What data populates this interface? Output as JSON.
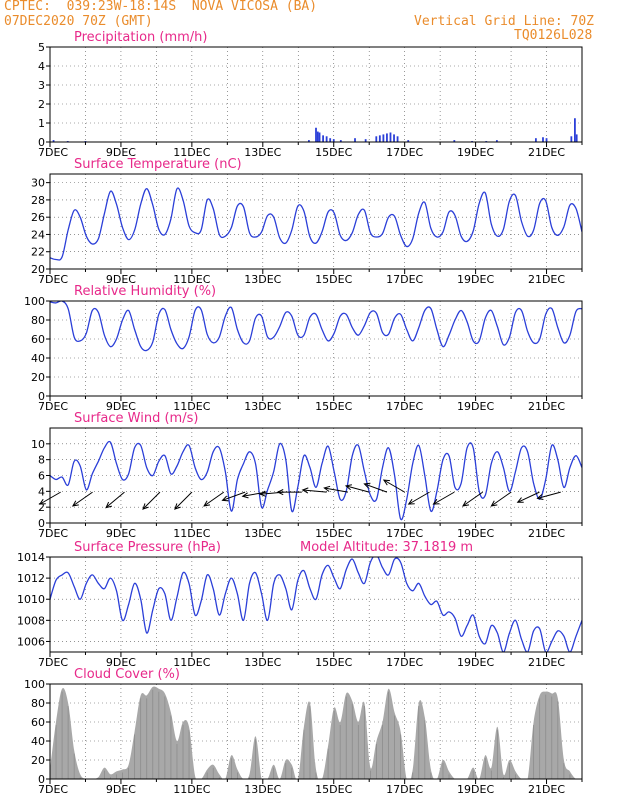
{
  "header": {
    "source": "CPTEC:",
    "coords": "039:23W-18:14S",
    "location": "NOVA VICOSA (BA)",
    "run": "07DEC2020 70Z (GMT)",
    "grid_note": "Vertical Grid Line: 70Z",
    "code": "TQ0126L028"
  },
  "colors": {
    "line": "#2b3fd8",
    "title": "#e7298a",
    "header": "#ea8c2c",
    "cloud": "#a8a8a8",
    "arrow": "#000000"
  },
  "x_labels": [
    "7DEC",
    "9DEC",
    "11DEC",
    "13DEC",
    "15DEC",
    "17DEC",
    "19DEC",
    "21DEC"
  ],
  "chart_data": [
    {
      "type": "bar",
      "title": "Precipitation (mm/h)",
      "ylim": [
        0,
        5
      ],
      "yticks": [
        0,
        1,
        2,
        3,
        4,
        5
      ],
      "x_unit": "days since 7DEC 70Z",
      "bars": [
        [
          0.1,
          0.1
        ],
        [
          0.5,
          0.05
        ],
        [
          1.0,
          0.05
        ],
        [
          7.3,
          0.1
        ],
        [
          7.5,
          0.75
        ],
        [
          7.55,
          0.55
        ],
        [
          7.6,
          0.5
        ],
        [
          7.7,
          0.35
        ],
        [
          7.8,
          0.3
        ],
        [
          7.9,
          0.2
        ],
        [
          8.0,
          0.15
        ],
        [
          8.2,
          0.1
        ],
        [
          8.6,
          0.2
        ],
        [
          8.9,
          0.15
        ],
        [
          9.2,
          0.3
        ],
        [
          9.3,
          0.35
        ],
        [
          9.4,
          0.4
        ],
        [
          9.5,
          0.45
        ],
        [
          9.6,
          0.5
        ],
        [
          9.7,
          0.4
        ],
        [
          9.8,
          0.3
        ],
        [
          10.1,
          0.1
        ],
        [
          11.4,
          0.1
        ],
        [
          11.9,
          0.05
        ],
        [
          12.3,
          0.05
        ],
        [
          12.6,
          0.1
        ],
        [
          13.7,
          0.2
        ],
        [
          13.9,
          0.25
        ],
        [
          14.0,
          0.2
        ],
        [
          14.7,
          0.3
        ],
        [
          14.8,
          1.25
        ],
        [
          14.85,
          0.4
        ]
      ]
    },
    {
      "type": "line",
      "title": "Surface Temperature (nC)",
      "ylim": [
        20,
        31
      ],
      "yticks": [
        20,
        22,
        24,
        26,
        28,
        30
      ],
      "series": [
        {
          "values": [
            21.3,
            21.1,
            21.4,
            24.5,
            26.8,
            26.0,
            23.8,
            22.9,
            23.5,
            26.4,
            29.0,
            27.5,
            24.8,
            23.4,
            24.5,
            27.5,
            29.3,
            27.4,
            24.6,
            24.0,
            25.8,
            29.3,
            28.0,
            25.0,
            24.2,
            24.5,
            28.0,
            27.0,
            24.0,
            23.8,
            24.8,
            27.3,
            27.2,
            24.2,
            23.7,
            24.3,
            26.2,
            26.0,
            23.6,
            23.0,
            24.5,
            27.3,
            26.7,
            23.7,
            23.0,
            24.3,
            26.6,
            26.5,
            23.9,
            23.3,
            24.2,
            26.3,
            26.8,
            24.2,
            23.7,
            24.1,
            26.0,
            26.1,
            23.9,
            22.6,
            23.5,
            26.5,
            27.7,
            24.7,
            23.7,
            24.3,
            26.6,
            26.2,
            23.8,
            23.2,
            24.4,
            27.6,
            28.8,
            25.2,
            23.8,
            24.6,
            27.9,
            28.5,
            25.5,
            23.8,
            24.5,
            27.6,
            27.9,
            24.8,
            23.9,
            24.9,
            27.4,
            27.0,
            24.3
          ]
        }
      ]
    },
    {
      "type": "line",
      "title": "Relative Humidity (%)",
      "ylim": [
        0,
        100
      ],
      "yticks": [
        0,
        20,
        40,
        60,
        80,
        100
      ],
      "series": [
        {
          "values": [
            99,
            98,
            100,
            92,
            62,
            58,
            66,
            90,
            88,
            64,
            52,
            60,
            80,
            90,
            70,
            52,
            48,
            57,
            86,
            91,
            70,
            55,
            50,
            62,
            90,
            91,
            65,
            56,
            62,
            84,
            93,
            70,
            56,
            58,
            82,
            84,
            62,
            62,
            73,
            88,
            84,
            64,
            64,
            83,
            86,
            70,
            58,
            66,
            84,
            86,
            72,
            64,
            74,
            88,
            87,
            67,
            65,
            82,
            86,
            70,
            58,
            72,
            90,
            92,
            70,
            52,
            64,
            80,
            90,
            78,
            58,
            58,
            82,
            90,
            73,
            54,
            62,
            88,
            90,
            68,
            56,
            60,
            86,
            92,
            72,
            56,
            64,
            89,
            92
          ]
        }
      ]
    },
    {
      "type": "line",
      "title": "Surface Wind (m/s)",
      "ylim": [
        0,
        12
      ],
      "yticks": [
        0,
        2,
        4,
        6,
        8,
        10
      ],
      "series": [
        {
          "values": [
            6.0,
            5.5,
            5.8,
            4.8,
            7.8,
            7.2,
            4.2,
            6.2,
            7.8,
            9.5,
            10.2,
            7.5,
            5.5,
            6.2,
            9.5,
            9.8,
            7.0,
            6.0,
            7.8,
            8.5,
            6.2,
            7.2,
            9.0,
            9.8,
            7.0,
            5.5,
            6.4,
            9.0,
            9.5,
            6.5,
            1.5,
            5.5,
            7.5,
            9.0,
            7.5,
            2.0,
            4.2,
            6.5,
            10.0,
            8.0,
            1.5,
            4.6,
            8.5,
            7.0,
            4.5,
            7.5,
            9.7,
            6.5,
            3.0,
            4.0,
            8.5,
            9.8,
            6.5,
            3.5,
            3.0,
            7.0,
            9.5,
            6.0,
            0.5,
            3.0,
            7.5,
            9.8,
            6.0,
            1.5,
            4.0,
            8.0,
            8.5,
            4.5,
            5.0,
            9.5,
            9.5,
            4.0,
            3.5,
            7.5,
            9.0,
            7.0,
            4.0,
            6.5,
            9.5,
            9.0,
            5.0,
            3.0,
            5.5,
            9.8,
            8.0,
            4.5,
            7.0,
            8.5,
            7.0
          ]
        }
      ]
    },
    {
      "type": "line",
      "title": "Surface Pressure (hPa)",
      "annotation": "Model Altitude: 37.1819 m",
      "ylim": [
        1005,
        1014
      ],
      "yticks": [
        1006,
        1008,
        1010,
        1012,
        1014
      ],
      "series": [
        {
          "values": [
            1010.0,
            1011.8,
            1012.3,
            1012.5,
            1011.2,
            1010.0,
            1011.5,
            1012.3,
            1011.5,
            1011.0,
            1012.0,
            1010.8,
            1008.0,
            1009.5,
            1011.5,
            1010.0,
            1006.8,
            1009.0,
            1011.0,
            1010.5,
            1008.0,
            1010.2,
            1012.5,
            1011.5,
            1008.5,
            1009.8,
            1012.3,
            1011.0,
            1008.5,
            1010.5,
            1012.0,
            1010.5,
            1008.0,
            1011.5,
            1012.5,
            1010.5,
            1008.0,
            1011.5,
            1012.3,
            1011.0,
            1009.0,
            1011.8,
            1012.7,
            1011.0,
            1010.0,
            1012.3,
            1013.2,
            1012.0,
            1011.0,
            1012.8,
            1013.8,
            1012.5,
            1011.5,
            1013.5,
            1014.2,
            1013.0,
            1012.3,
            1013.8,
            1013.5,
            1011.5,
            1010.8,
            1011.5,
            1010.3,
            1009.5,
            1009.8,
            1008.5,
            1008.8,
            1008.2,
            1006.5,
            1007.5,
            1008.5,
            1006.5,
            1005.8,
            1007.5,
            1006.8,
            1005.0,
            1006.8,
            1008.0,
            1006.2,
            1005.0,
            1007.0,
            1007.2,
            1005.0,
            1006.0,
            1007.0,
            1006.5,
            1005.0,
            1006.5,
            1008.0
          ]
        }
      ]
    },
    {
      "type": "area",
      "title": "Cloud Cover (%)",
      "ylim": [
        0,
        100
      ],
      "yticks": [
        0,
        20,
        40,
        60,
        80,
        100
      ],
      "series": [
        {
          "values": [
            10,
            60,
            95,
            80,
            30,
            5,
            0,
            0,
            2,
            12,
            5,
            8,
            10,
            15,
            50,
            88,
            88,
            97,
            95,
            90,
            70,
            40,
            60,
            55,
            3,
            0,
            10,
            15,
            5,
            0,
            25,
            10,
            0,
            5,
            45,
            0,
            0,
            15,
            0,
            20,
            15,
            0,
            55,
            80,
            10,
            0,
            35,
            75,
            60,
            90,
            82,
            60,
            80,
            12,
            40,
            60,
            95,
            70,
            50,
            0,
            10,
            80,
            65,
            10,
            0,
            20,
            8,
            0,
            0,
            0,
            12,
            0,
            25,
            12,
            55,
            5,
            20,
            8,
            0,
            0,
            60,
            88,
            92,
            90,
            85,
            20,
            8,
            0,
            0
          ]
        }
      ]
    }
  ],
  "wind_arrows": [
    [
      0.3,
      210
    ],
    [
      1.2,
      215
    ],
    [
      2.1,
      220
    ],
    [
      3.1,
      225
    ],
    [
      4.0,
      225
    ],
    [
      4.9,
      215
    ],
    [
      5.5,
      200
    ],
    [
      6.1,
      190
    ],
    [
      6.6,
      185
    ],
    [
      7.1,
      180
    ],
    [
      7.8,
      175
    ],
    [
      8.4,
      170
    ],
    [
      9.0,
      165
    ],
    [
      9.5,
      160
    ],
    [
      10.0,
      150
    ],
    [
      10.7,
      210
    ],
    [
      11.4,
      210
    ],
    [
      12.2,
      215
    ],
    [
      13.0,
      215
    ],
    [
      13.8,
      205
    ],
    [
      14.4,
      195
    ]
  ]
}
